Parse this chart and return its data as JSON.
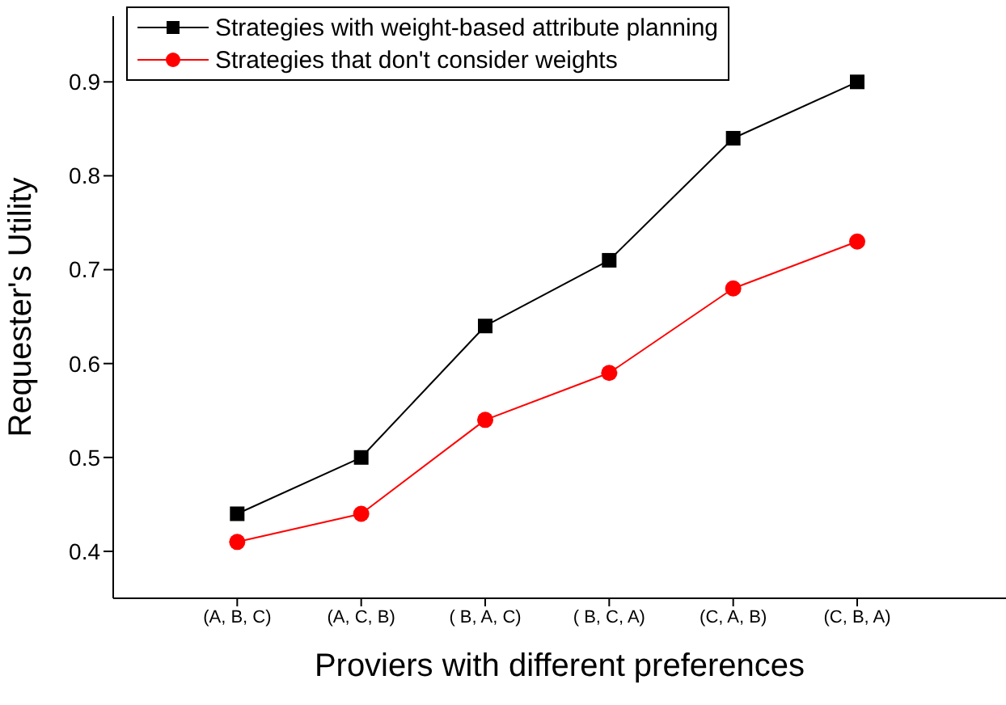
{
  "chart_data": {
    "type": "line",
    "xlabel": "Proviers with different preferences",
    "ylabel": "Requester's Utility",
    "categories": [
      "(A, B, C)",
      "(A, C, B)",
      "( B, A, C)",
      "( B, C, A)",
      "(C, A, B)",
      "(C, B, A)"
    ],
    "series": [
      {
        "name": "Strategies with weight-based attribute planning",
        "color": "#000000",
        "marker": "square",
        "values": [
          0.44,
          0.5,
          0.64,
          0.71,
          0.84,
          0.9
        ]
      },
      {
        "name": "Strategies that don't consider weights",
        "color": "#ff0000",
        "marker": "circle",
        "values": [
          0.41,
          0.44,
          0.54,
          0.59,
          0.68,
          0.73
        ]
      }
    ],
    "ylim": [
      0.35,
      0.97
    ],
    "yticks": [
      0.4,
      0.5,
      0.6,
      0.7,
      0.8,
      0.9
    ],
    "grid": false,
    "legend": "top left",
    "line_style": "solid"
  }
}
